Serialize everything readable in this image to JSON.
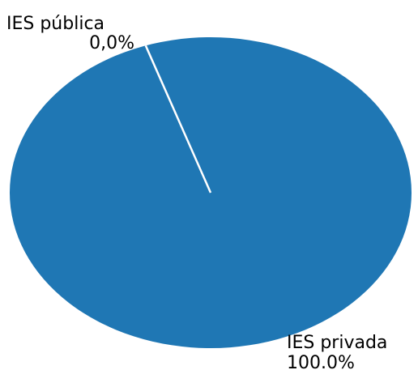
{
  "chart_data": {
    "type": "pie",
    "labels": [
      "IES pública",
      "IES privada"
    ],
    "values": [
      0.0,
      100.0
    ],
    "value_labels": [
      "0,0%",
      "100.0%"
    ],
    "colors": [
      "#1f77b4",
      "#1f77b4"
    ],
    "slice_edge_color": "#ffffff"
  }
}
